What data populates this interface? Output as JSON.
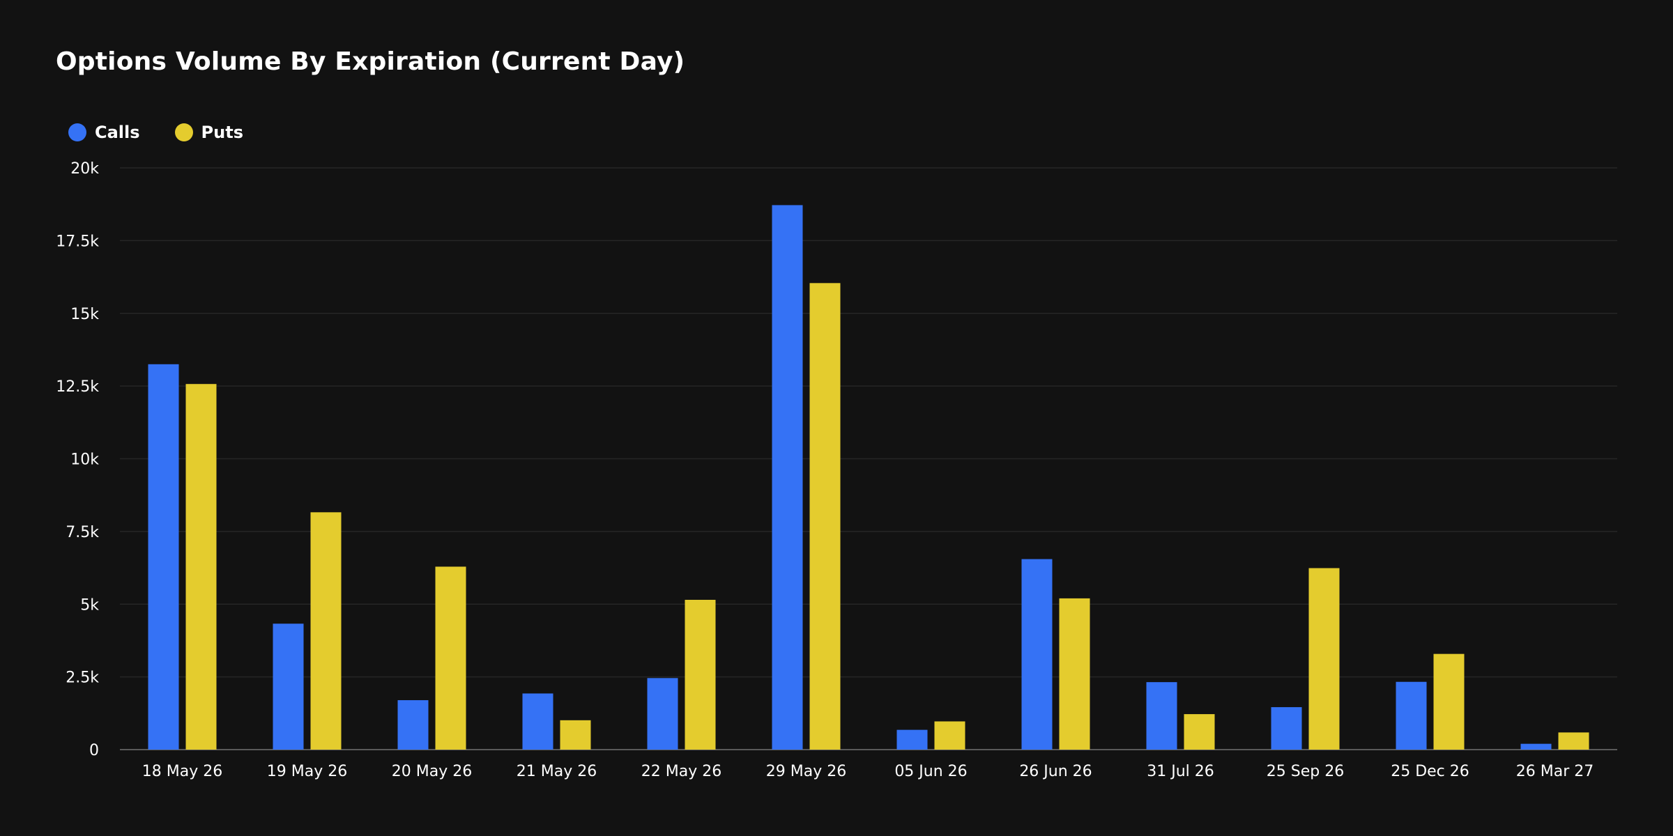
{
  "title": "Options Volume By Expiration (Current Day)",
  "colors": {
    "calls": "#3572f5",
    "puts": "#e4cc2e",
    "grid": "#262626",
    "axis": "#5a5a5a"
  },
  "legend": [
    {
      "label": "Calls",
      "color": "#3572f5"
    },
    {
      "label": "Puts",
      "color": "#e4cc2e"
    }
  ],
  "chart_data": {
    "type": "bar",
    "title": "Options Volume By Expiration (Current Day)",
    "categories": [
      "18 May 26",
      "19 May 26",
      "20 May 26",
      "21 May 26",
      "22 May 26",
      "29 May 26",
      "05 Jun 26",
      "26 Jun 26",
      "31 Jul 26",
      "25 Sep 26",
      "25 Dec 26",
      "26 Mar 27"
    ],
    "series": [
      {
        "name": "Calls",
        "values": [
          13250,
          4330,
          1700,
          1930,
          2460,
          18720,
          680,
          6550,
          2320,
          1460,
          2330,
          200
        ]
      },
      {
        "name": "Puts",
        "values": [
          12570,
          8160,
          6290,
          1010,
          5150,
          16040,
          970,
          5200,
          1220,
          6240,
          3290,
          590
        ]
      }
    ],
    "ylim": [
      0,
      20000
    ],
    "yticks": [
      0,
      2500,
      5000,
      7500,
      10000,
      12500,
      15000,
      17500,
      20000
    ],
    "ytick_labels": [
      "0",
      "2.5k",
      "5k",
      "7.5k",
      "10k",
      "12.5k",
      "15k",
      "17.5k",
      "20k"
    ],
    "grid": true,
    "legend_position": "top-left"
  }
}
